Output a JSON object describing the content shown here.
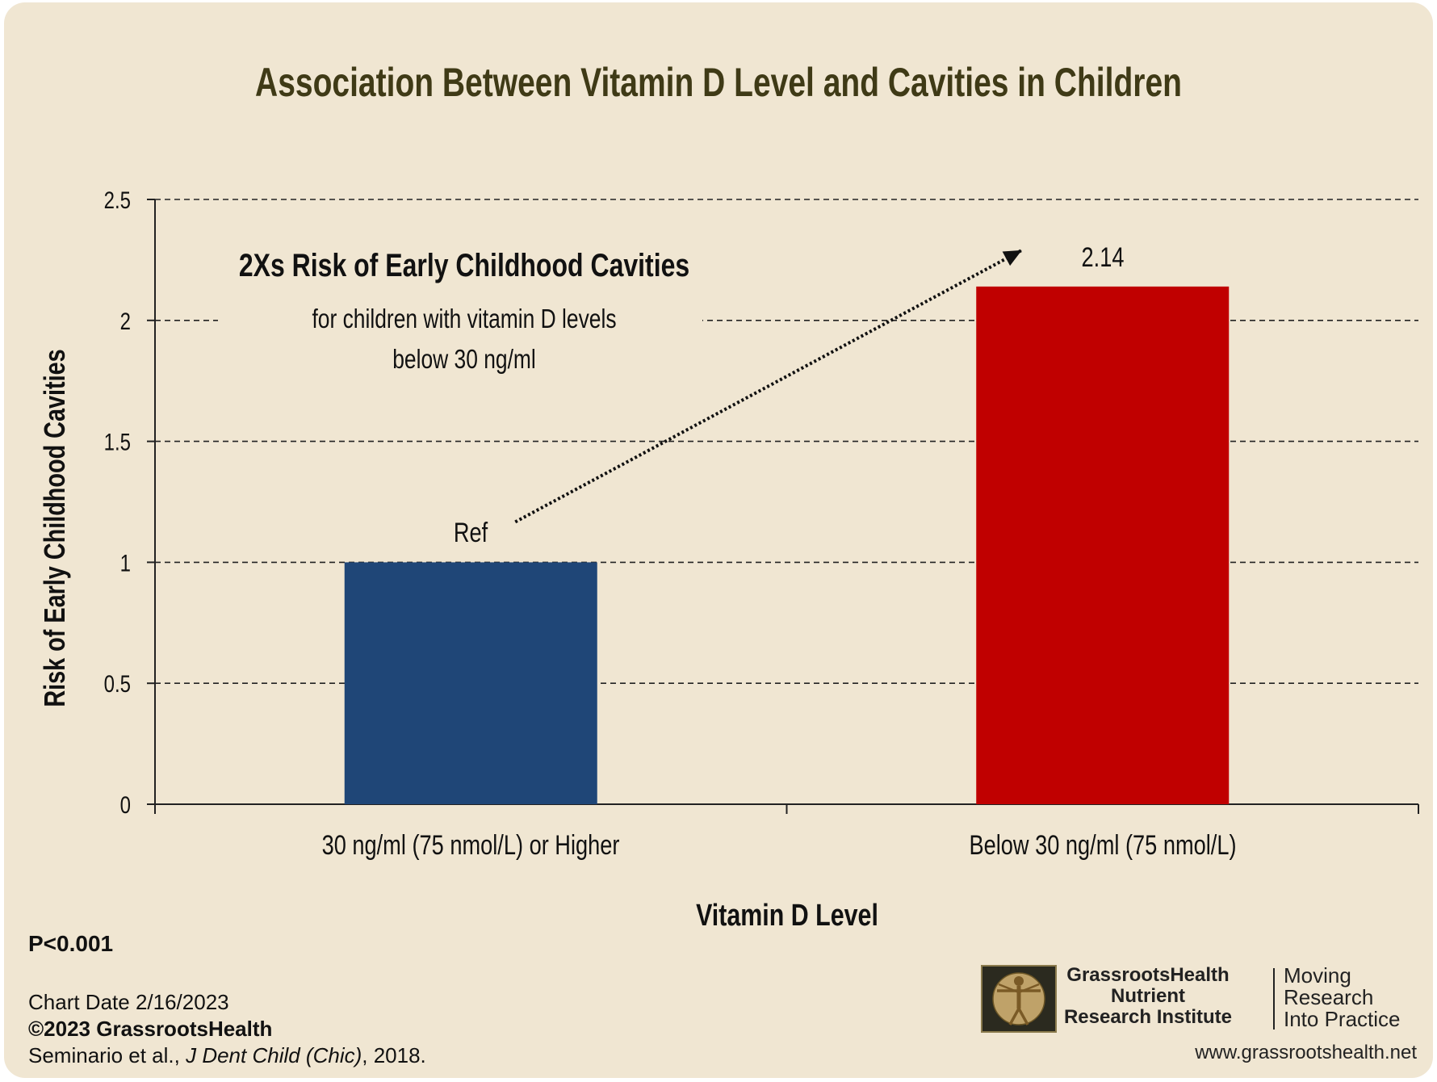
{
  "chart_data": {
    "type": "bar",
    "title": "Association Between Vitamin D Level and Cavities in Children",
    "xlabel": "Vitamin D Level",
    "ylabel": "Risk of Early Childhood Cavities",
    "categories": [
      "30 ng/ml (75 nmol/L) or Higher",
      "Below 30 ng/ml (75 nmol/L)"
    ],
    "values": [
      1,
      2.14
    ],
    "bar_labels": [
      "Ref",
      "2.14"
    ],
    "bar_colors": [
      "#1f4677",
      "#c00000"
    ],
    "ylim": [
      0,
      2.5
    ],
    "yticks": [
      0,
      0.5,
      1,
      1.5,
      2,
      2.5
    ],
    "ytick_labels": [
      "0",
      "0.5",
      "1",
      "1.5",
      "2",
      "2.5"
    ],
    "grid": "dashed horizontal",
    "legend": "none",
    "annotation": {
      "main": "2Xs Risk of Early Childhood Cavities",
      "line1": "for children with vitamin D levels",
      "line2": "below 30 ng/ml"
    }
  },
  "footer": {
    "pvalue": "P<0.001",
    "chart_date": "Chart Date 2/16/2023",
    "copyright": "©2023 GrassrootsHealth",
    "citation_prefix": "Seminario et al., ",
    "citation_journal": "J Dent Child (Chic)",
    "citation_suffix": ", 2018."
  },
  "logo": {
    "name_line1": "GrassrootsHealth",
    "name_line2": "Nutrient",
    "name_line3": "Research Institute",
    "tagline_line1": "Moving",
    "tagline_line2": "Research",
    "tagline_line3": "Into Practice",
    "website": "www.grassrootshealth.net",
    "icon": "vitruvian-man-icon"
  },
  "colors": {
    "background": "#f0e6d2",
    "title": "#3f3a16",
    "bar_blue": "#1f4677",
    "bar_red": "#c00000"
  }
}
